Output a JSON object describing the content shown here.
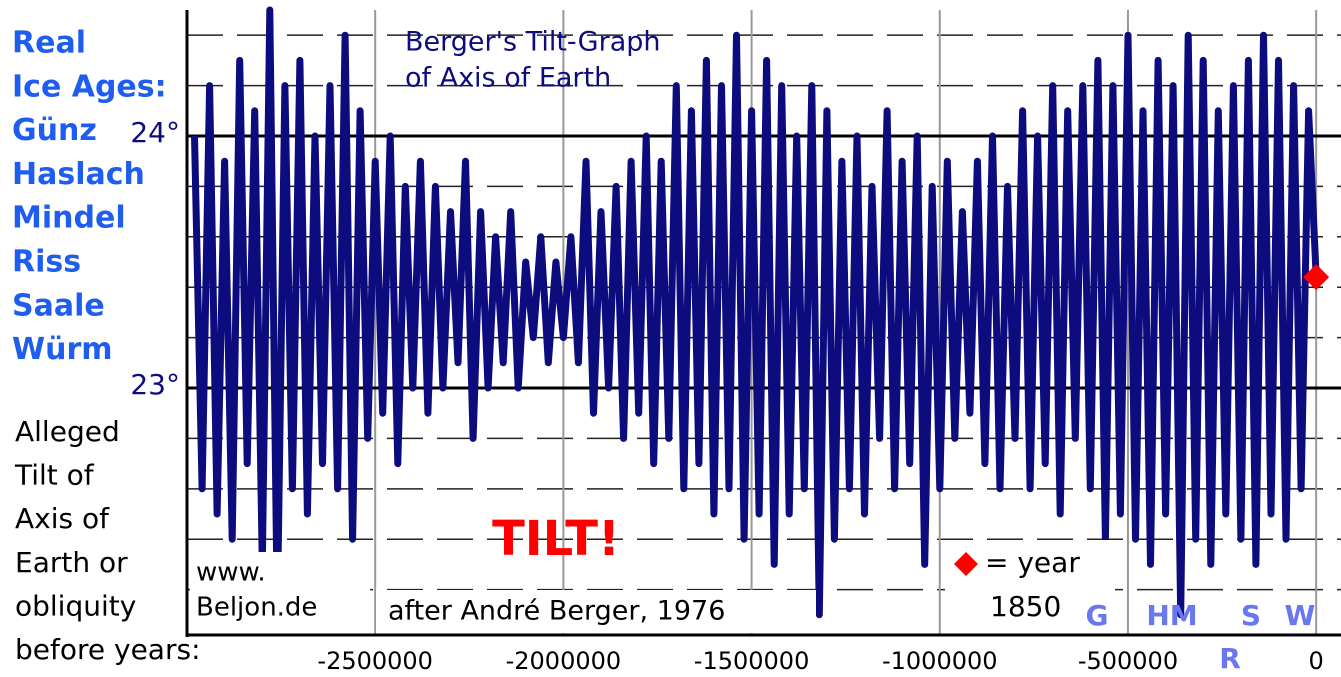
{
  "chart_data": {
    "type": "line",
    "title": [
      "Berger's Tilt-Graph",
      "of Axis of Earth"
    ],
    "side_text": {
      "ice_ages": [
        "Real",
        "Ice Ages:",
        "Günz",
        "Haslach",
        "Mindel",
        "Riss",
        "Saale",
        "Würm"
      ],
      "alleged": [
        "Alleged",
        "Tilt of",
        "Axis of",
        "Earth or",
        "obliquity",
        "before years:"
      ]
    },
    "annotations": {
      "tilt": "TILT!",
      "site": [
        "www.",
        "Beljon.de"
      ],
      "source": "after André Berger, 1976",
      "legend": [
        "= year",
        "1850"
      ],
      "ages": [
        "G",
        "HM",
        "S",
        "W",
        "R"
      ]
    },
    "xlim": [
      -3000000,
      66000
    ],
    "xticks": [
      -2500000,
      -2000000,
      -1500000,
      -1000000,
      -500000,
      0
    ],
    "ylim": [
      22.02,
      24.48
    ],
    "yticks": [
      {
        "value": 24,
        "label": "24°"
      },
      {
        "value": 23,
        "label": "23°"
      }
    ],
    "ygrid_dashed": [
      24.4,
      24.2,
      23.8,
      23.6,
      23.4,
      23.2,
      22.8,
      22.6,
      22.4,
      22.2
    ],
    "series": [
      {
        "color": "#0c0c7e",
        "x": [
          -2980000,
          -2960000,
          -2940000,
          -2920000,
          -2900000,
          -2880000,
          -2860000,
          -2840000,
          -2820000,
          -2800000,
          -2780000,
          -2760000,
          -2740000,
          -2720000,
          -2700000,
          -2680000,
          -2660000,
          -2640000,
          -2620000,
          -2600000,
          -2580000,
          -2560000,
          -2540000,
          -2520000,
          -2500000,
          -2480000,
          -2460000,
          -2440000,
          -2420000,
          -2400000,
          -2380000,
          -2360000,
          -2340000,
          -2320000,
          -2300000,
          -2280000,
          -2260000,
          -2240000,
          -2220000,
          -2200000,
          -2180000,
          -2160000,
          -2140000,
          -2120000,
          -2100000,
          -2080000,
          -2060000,
          -2040000,
          -2020000,
          -2000000,
          -1980000,
          -1960000,
          -1940000,
          -1920000,
          -1900000,
          -1880000,
          -1860000,
          -1840000,
          -1820000,
          -1800000,
          -1780000,
          -1760000,
          -1740000,
          -1720000,
          -1700000,
          -1680000,
          -1660000,
          -1640000,
          -1620000,
          -1600000,
          -1580000,
          -1560000,
          -1540000,
          -1520000,
          -1500000,
          -1480000,
          -1460000,
          -1440000,
          -1420000,
          -1400000,
          -1380000,
          -1360000,
          -1340000,
          -1320000,
          -1300000,
          -1280000,
          -1260000,
          -1240000,
          -1220000,
          -1200000,
          -1180000,
          -1160000,
          -1140000,
          -1120000,
          -1100000,
          -1080000,
          -1060000,
          -1040000,
          -1020000,
          -1000000,
          -980000,
          -960000,
          -940000,
          -920000,
          -900000,
          -880000,
          -860000,
          -840000,
          -820000,
          -800000,
          -780000,
          -760000,
          -740000,
          -720000,
          -700000,
          -680000,
          -660000,
          -640000,
          -620000,
          -600000,
          -580000,
          -560000,
          -540000,
          -520000,
          -500000,
          -480000,
          -460000,
          -440000,
          -420000,
          -400000,
          -380000,
          -360000,
          -340000,
          -320000,
          -300000,
          -280000,
          -260000,
          -240000,
          -220000,
          -200000,
          -180000,
          -160000,
          -140000,
          -120000,
          -100000,
          -80000,
          -60000,
          -40000,
          -20000,
          0
        ],
        "values": [
          24.0,
          22.6,
          24.2,
          22.5,
          23.9,
          22.4,
          24.3,
          22.7,
          24.1,
          22.3,
          24.5,
          22.1,
          24.2,
          22.6,
          24.3,
          22.5,
          24.0,
          22.7,
          24.2,
          22.6,
          24.4,
          22.4,
          24.1,
          22.8,
          23.9,
          22.9,
          24.0,
          22.7,
          23.8,
          23.0,
          23.9,
          22.9,
          23.8,
          23.0,
          23.7,
          23.1,
          23.9,
          22.8,
          23.7,
          23.0,
          23.6,
          23.1,
          23.7,
          23.0,
          23.5,
          23.2,
          23.6,
          23.1,
          23.5,
          23.2,
          23.6,
          23.1,
          23.9,
          22.9,
          23.7,
          23.0,
          23.8,
          22.8,
          23.9,
          22.9,
          24.0,
          22.7,
          23.9,
          22.8,
          24.2,
          22.6,
          24.1,
          22.7,
          24.3,
          22.5,
          24.2,
          22.6,
          24.4,
          22.4,
          24.1,
          22.5,
          24.3,
          22.3,
          24.2,
          22.5,
          24.0,
          22.6,
          24.2,
          22.1,
          24.1,
          22.4,
          23.9,
          22.6,
          24.0,
          22.5,
          23.8,
          22.8,
          24.1,
          22.6,
          23.9,
          22.7,
          24.0,
          22.3,
          23.8,
          22.6,
          23.9,
          22.8,
          23.7,
          22.9,
          23.9,
          22.7,
          24.0,
          22.6,
          23.8,
          22.8,
          24.1,
          22.6,
          24.0,
          22.7,
          24.2,
          22.5,
          24.1,
          22.8,
          24.2,
          22.6,
          24.3,
          22.4,
          24.2,
          22.5,
          24.4,
          22.4,
          24.1,
          22.3,
          24.3,
          22.5,
          24.2,
          22.1,
          24.4,
          22.4,
          24.3,
          22.3,
          24.1,
          22.5,
          24.2,
          22.4,
          24.3,
          22.3,
          24.4,
          22.5,
          24.3,
          22.4,
          24.2,
          22.6,
          24.1,
          23.44
        ]
      }
    ],
    "marker": {
      "x": 0,
      "value": 23.44,
      "color": "#ff0000"
    }
  }
}
